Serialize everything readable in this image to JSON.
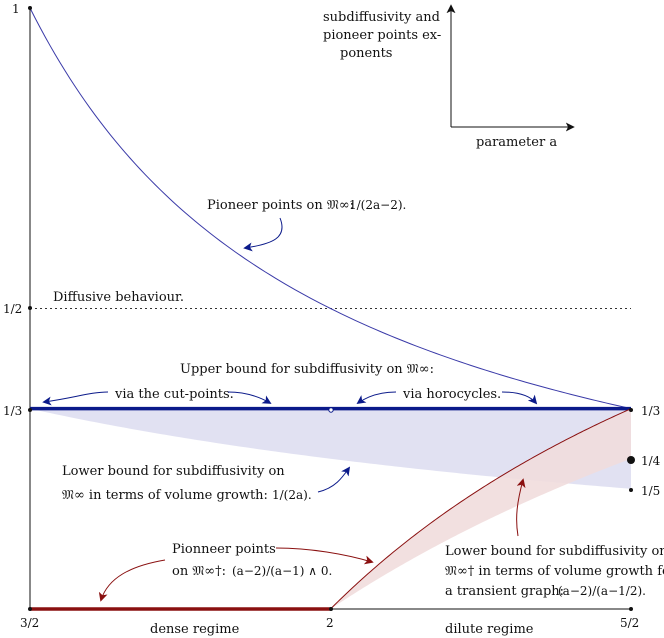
{
  "chart_data": {
    "type": "line",
    "x_ticks": [
      "3/2",
      "2",
      "5/2"
    ],
    "y_ticks": [
      "1",
      "1/2",
      "1/3"
    ],
    "right_ticks": [
      "1/3",
      "1/4",
      "1/5"
    ],
    "xlim": [
      1.5,
      2.5
    ],
    "ylim": [
      0,
      1
    ],
    "regime_labels": {
      "dense": "dense regime",
      "dilute": "dilute regime"
    },
    "legend": {
      "title_lines": [
        "subdiffusivity and",
        "pioneer points ex-",
        "ponents"
      ],
      "xlabel": "parameter a"
    },
    "annotations": {
      "pioneer_inf": {
        "text": "Pioneer points on 𝔐∞:",
        "formula": "1/(2a−2)."
      },
      "diffusive": "Diffusive behaviour.",
      "upper_bound": "Upper bound for subdiffusivity on 𝔐∞:",
      "via_cut": "via the cut-points.",
      "via_horo": "via horocycles.",
      "lower_bound_lines": [
        "Lower bound for subdiffusivity on",
        "𝔐∞ in terms of volume growth:"
      ],
      "lower_bound_formula": "1/(2a).",
      "pioneer_dagger_lines": [
        "Pionneer points",
        "on 𝔐∞†:"
      ],
      "pioneer_dagger_formula": "(a−2)/(a−1) ∧ 0.",
      "lower_transient_lines": [
        "Lower bound for subdiffusivity on",
        "𝔐∞† in terms of volume growth for",
        "a transient graph:"
      ],
      "lower_transient_formula": "(a−2)/(a−1/2)."
    },
    "series": [
      {
        "name": "Pioneer points on 𝔐∞",
        "formula": "1/(2a−2)",
        "domain": [
          1.5,
          2.5
        ],
        "color": "#3a3aa8"
      },
      {
        "name": "Upper bound for subdiffusivity on 𝔐∞",
        "formula": "1/3",
        "domain": [
          1.5,
          2.5
        ],
        "color": "#0b1a8a"
      },
      {
        "name": "Lower bound for subdiffusivity on 𝔐∞",
        "formula": "1/(2a)",
        "domain": [
          1.5,
          2.5
        ],
        "color": "#d9d9ee"
      },
      {
        "name": "Pionneer points on 𝔐∞†",
        "formula": "(a−2)/(a−1) ∧ 0",
        "domain": [
          1.5,
          2.5
        ],
        "color": "#8a1010"
      },
      {
        "name": "Lower bound for subdiffusivity on 𝔐∞†",
        "formula": "(a−2)/(a−1/2)",
        "domain": [
          2,
          2.5
        ],
        "color": "#f1dede"
      },
      {
        "name": "Diffusive behaviour",
        "formula": "1/2",
        "domain": [
          1.5,
          2.5
        ],
        "color": "#333333"
      }
    ],
    "grid": false
  },
  "colors": {
    "blue": "#0b1a8a",
    "thin_blue": "#3a3aa8",
    "red": "#8a1010",
    "blue_fill": "#dcdcf0",
    "red_fill": "#f1dddd"
  }
}
